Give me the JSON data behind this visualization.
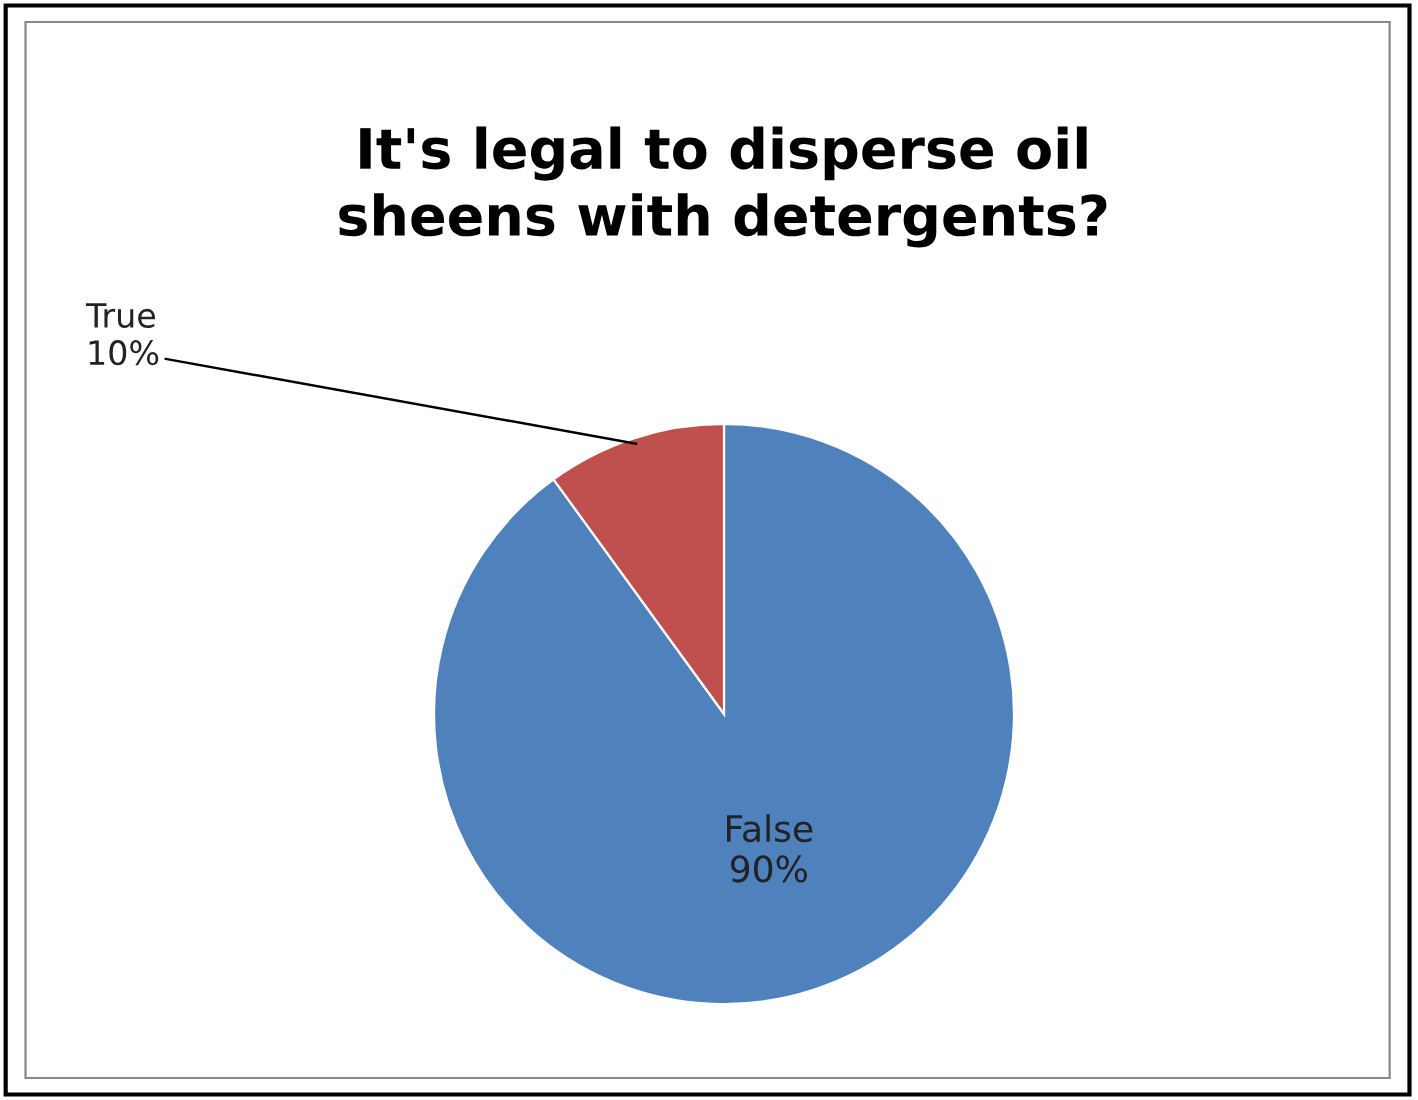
{
  "chart_data": {
    "type": "pie",
    "title": "It's legal to disperse oil\nsheens with detergents?",
    "categories": [
      "False",
      "True"
    ],
    "values": [
      90,
      10
    ],
    "colors": [
      "#4f81bd",
      "#c0504d"
    ],
    "value_labels": [
      "90%",
      "10%"
    ],
    "legend": false
  }
}
